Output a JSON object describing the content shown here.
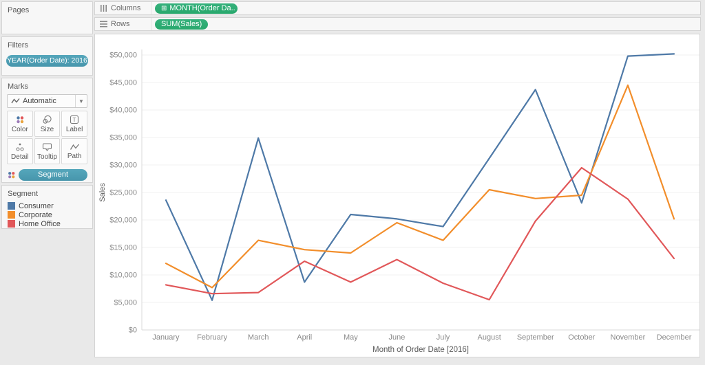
{
  "sidebar": {
    "pages": {
      "title": "Pages"
    },
    "filters": {
      "title": "Filters",
      "pill": "YEAR(Order Date): 2016"
    },
    "marks": {
      "title": "Marks",
      "mark_type": "Automatic",
      "buttons": [
        {
          "label": "Color"
        },
        {
          "label": "Size"
        },
        {
          "label": "Label"
        },
        {
          "label": "Detail"
        },
        {
          "label": "Tooltip"
        },
        {
          "label": "Path"
        }
      ],
      "encoding_pill": "Segment"
    },
    "legend": {
      "title": "Segment",
      "items": [
        {
          "label": "Consumer",
          "color": "#4e79a7"
        },
        {
          "label": "Corporate",
          "color": "#f28e2b"
        },
        {
          "label": "Home Office",
          "color": "#e15759"
        }
      ]
    }
  },
  "shelves": {
    "columns": {
      "label": "Columns",
      "pill_icon": "⊞",
      "pill": "MONTH(Order Da.."
    },
    "rows": {
      "label": "Rows",
      "pill": "SUM(Sales)"
    }
  },
  "colors": {
    "pill_teal": "#4A9EB5",
    "pill_green": "#2DAC73",
    "grid": "#f0f0f0",
    "axis": "#d9d9d9",
    "tick_text": "#8a8a8a",
    "axis_title_text": "#5a5a5a"
  },
  "chart_data": {
    "type": "line",
    "x": [
      "January",
      "February",
      "March",
      "April",
      "May",
      "June",
      "July",
      "August",
      "September",
      "October",
      "November",
      "December"
    ],
    "xlabel": "Month of Order Date [2016]",
    "ylabel": "Sales",
    "ylim": [
      0,
      50000
    ],
    "grid": "horizontal",
    "legend_position": "left-panel",
    "y_ticks": {
      "values": [
        0,
        5000,
        10000,
        15000,
        20000,
        25000,
        30000,
        35000,
        40000,
        45000,
        50000
      ],
      "labels": [
        "$0",
        "$5,000",
        "$10,000",
        "$15,000",
        "$20,000",
        "$25,000",
        "$30,000",
        "$35,000",
        "$40,000",
        "$45,000",
        "$50,000"
      ]
    },
    "series": [
      {
        "name": "Consumer",
        "color": "#4e79a7",
        "values": [
          23600,
          5400,
          34900,
          8700,
          21000,
          20200,
          18800,
          31200,
          43700,
          23100,
          49800,
          50200
        ]
      },
      {
        "name": "Corporate",
        "color": "#f28e2b",
        "values": [
          12100,
          7700,
          16300,
          14600,
          14000,
          19500,
          16300,
          25500,
          23900,
          24500,
          44500,
          20200
        ]
      },
      {
        "name": "Home Office",
        "color": "#e15759",
        "values": [
          8200,
          6600,
          6800,
          12500,
          8700,
          12800,
          8500,
          5500,
          19800,
          29500,
          23800,
          13000
        ]
      }
    ]
  }
}
